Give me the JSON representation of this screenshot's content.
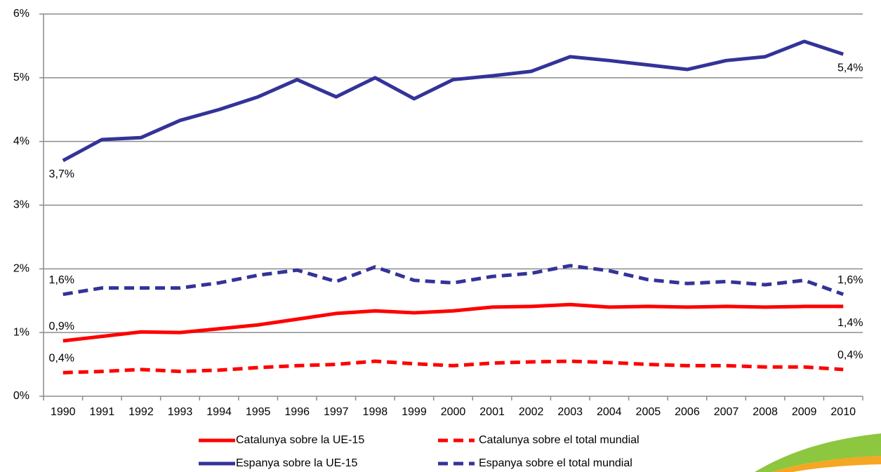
{
  "chart_data": {
    "type": "line",
    "categories": [
      "1990",
      "1991",
      "1992",
      "1993",
      "1994",
      "1995",
      "1996",
      "1997",
      "1998",
      "1999",
      "2000",
      "2001",
      "2002",
      "2003",
      "2004",
      "2005",
      "2006",
      "2007",
      "2008",
      "2009",
      "2010"
    ],
    "ylim": [
      0,
      6
    ],
    "yticks": [
      {
        "value": 0,
        "label": "0%"
      },
      {
        "value": 1,
        "label": "1%"
      },
      {
        "value": 2,
        "label": "2%"
      },
      {
        "value": 3,
        "label": "3%"
      },
      {
        "value": 4,
        "label": "4%"
      },
      {
        "value": 5,
        "label": "5%"
      },
      {
        "value": 6,
        "label": "6%"
      }
    ],
    "grid": true,
    "series": [
      {
        "name": "Catalunya sobre la UE-15",
        "color": "#ff0000",
        "linestyle": "solid",
        "values": [
          0.87,
          0.94,
          1.01,
          1.0,
          1.06,
          1.12,
          1.21,
          1.3,
          1.34,
          1.31,
          1.34,
          1.4,
          1.41,
          1.44,
          1.4,
          1.41,
          1.4,
          1.41,
          1.4,
          1.41,
          1.41
        ],
        "value_labels": [
          "0,9%",
          null,
          null,
          null,
          null,
          null,
          null,
          null,
          null,
          null,
          null,
          null,
          null,
          null,
          null,
          null,
          null,
          null,
          null,
          null,
          "1,4%"
        ]
      },
      {
        "name": "Catalunya sobre el total mundial",
        "color": "#ff0000",
        "linestyle": "dashed",
        "values": [
          0.37,
          0.39,
          0.42,
          0.39,
          0.41,
          0.45,
          0.48,
          0.5,
          0.55,
          0.51,
          0.48,
          0.52,
          0.54,
          0.55,
          0.53,
          0.5,
          0.48,
          0.48,
          0.46,
          0.46,
          0.42
        ],
        "value_labels": [
          "0,4%",
          null,
          null,
          null,
          null,
          null,
          null,
          null,
          null,
          null,
          null,
          null,
          null,
          null,
          null,
          null,
          null,
          null,
          null,
          null,
          "0,4%"
        ]
      },
      {
        "name": "Espanya sobre la UE-15",
        "color": "#333399",
        "linestyle": "solid",
        "values": [
          3.7,
          4.03,
          4.06,
          4.33,
          4.5,
          4.7,
          4.97,
          4.7,
          5.0,
          4.67,
          4.97,
          5.03,
          5.1,
          5.33,
          5.27,
          5.2,
          5.13,
          5.27,
          5.33,
          5.57,
          5.37
        ],
        "value_labels": [
          "3,7%",
          null,
          null,
          null,
          null,
          null,
          null,
          null,
          null,
          null,
          null,
          null,
          null,
          null,
          null,
          null,
          null,
          null,
          null,
          null,
          "5,4%"
        ]
      },
      {
        "name": "Espanya sobre el total mundial",
        "color": "#333399",
        "linestyle": "dashed",
        "values": [
          1.6,
          1.7,
          1.7,
          1.7,
          1.78,
          1.9,
          1.98,
          1.8,
          2.03,
          1.82,
          1.78,
          1.88,
          1.93,
          2.05,
          1.97,
          1.83,
          1.77,
          1.8,
          1.75,
          1.82,
          1.6
        ],
        "value_labels": [
          "1,6%",
          null,
          null,
          null,
          null,
          null,
          null,
          null,
          null,
          null,
          null,
          null,
          null,
          null,
          null,
          null,
          null,
          null,
          null,
          null,
          "1,6%"
        ]
      }
    ]
  }
}
